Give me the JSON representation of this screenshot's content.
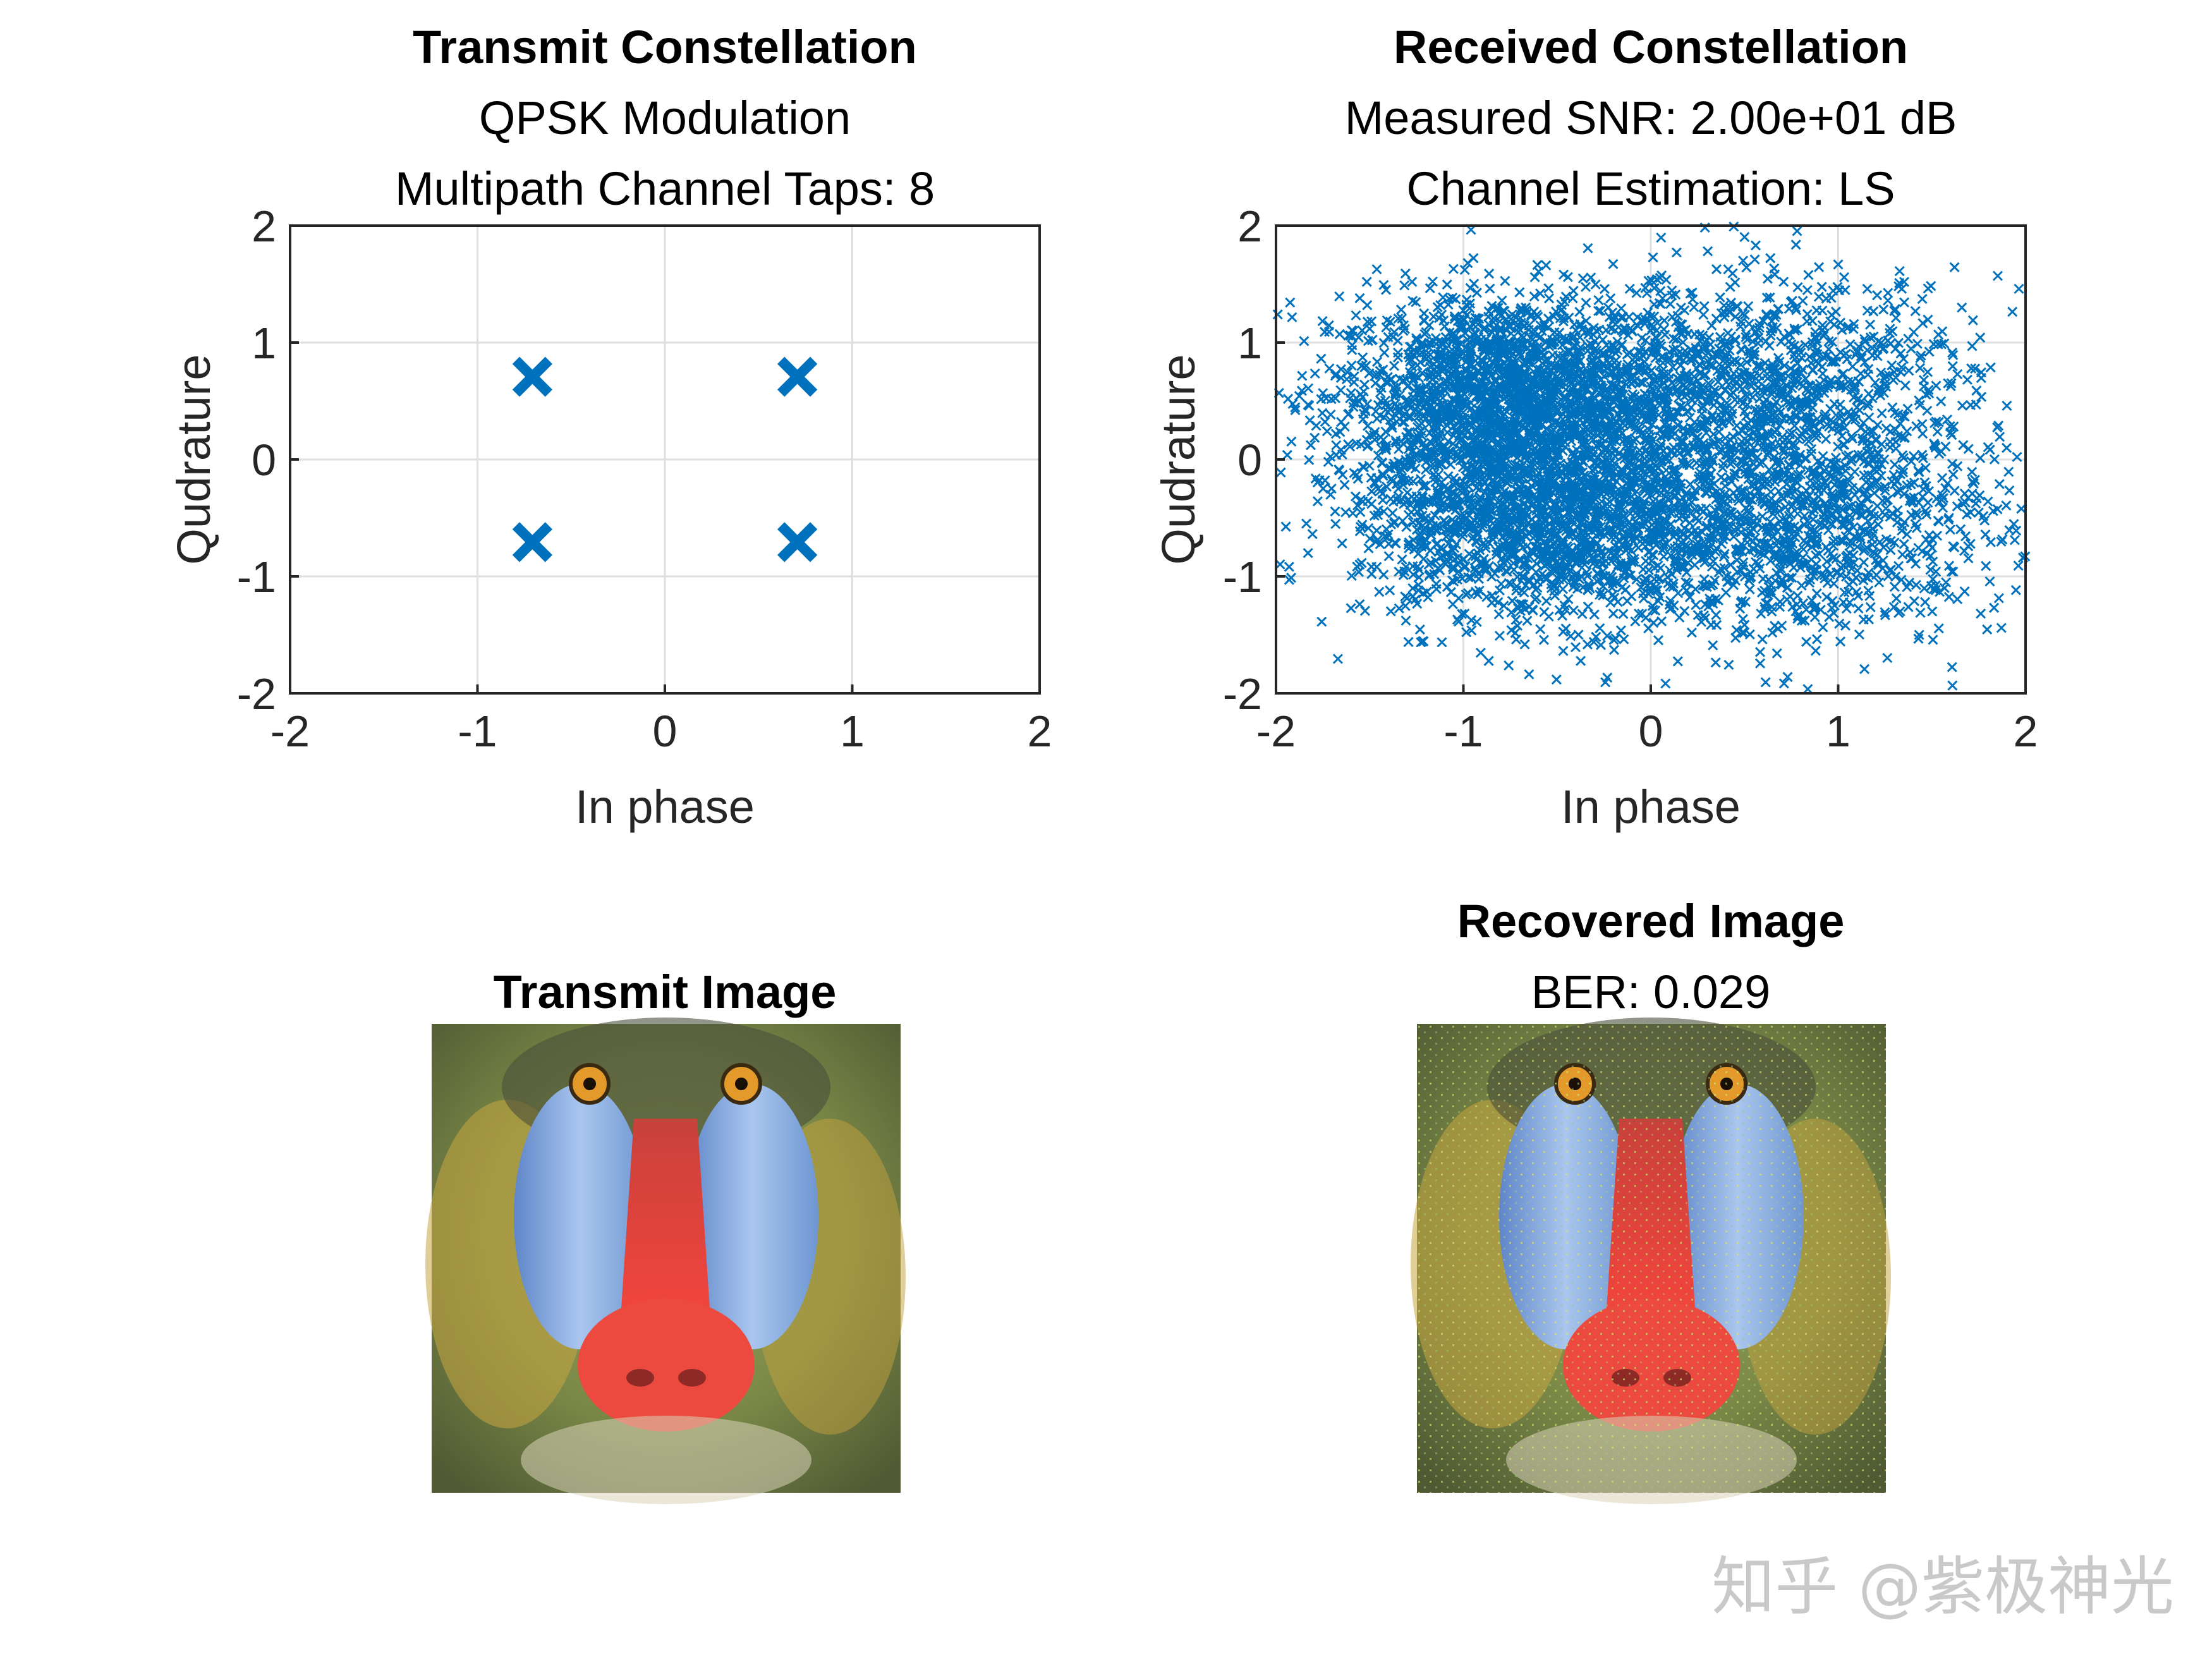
{
  "colors": {
    "marker": "#0072BD",
    "axis": "#262626",
    "grid": "#dfdfdf"
  },
  "chart_data": [
    {
      "type": "scatter",
      "title": "Transmit Constellation",
      "subtitles": [
        "QPSK Modulation",
        "Multipath Channel Taps: 8"
      ],
      "xlabel": "In phase",
      "ylabel": "Qudrature",
      "xlim": [
        -2,
        2
      ],
      "ylim": [
        -2,
        2
      ],
      "xticks": [
        "-2",
        "-1",
        "0",
        "1",
        "2"
      ],
      "yticks": [
        "-2",
        "-1",
        "0",
        "1",
        "2"
      ],
      "grid": true,
      "marker": "x",
      "points": [
        [
          -0.707,
          0.707
        ],
        [
          0.707,
          0.707
        ],
        [
          -0.707,
          -0.707
        ],
        [
          0.707,
          -0.707
        ]
      ]
    },
    {
      "type": "scatter",
      "title": "Received Constellation",
      "subtitles": [
        "Measured SNR: 2.00e+01 dB",
        "Channel Estimation: LS"
      ],
      "xlabel": "In phase",
      "ylabel": "Qudrature",
      "xlim": [
        -2,
        2
      ],
      "ylim": [
        -2,
        2
      ],
      "xticks": [
        "-2",
        "-1",
        "0",
        "1",
        "2"
      ],
      "yticks": [
        "-2",
        "-1",
        "0",
        "1",
        "2"
      ],
      "grid": true,
      "marker": "x",
      "clusters": [
        {
          "center": [
            -0.75,
            0.55
          ],
          "spread": 0.48,
          "weight": 0.34
        },
        {
          "center": [
            -0.55,
            -0.5
          ],
          "spread": 0.5,
          "weight": 0.3
        },
        {
          "center": [
            0.6,
            0.6
          ],
          "spread": 0.55,
          "weight": 0.18
        },
        {
          "center": [
            0.8,
            -0.55
          ],
          "spread": 0.55,
          "weight": 0.18
        }
      ],
      "point_count": 6000
    }
  ],
  "images": [
    {
      "title": "Transmit Image",
      "subtitle": "",
      "content": "mandrill-photo"
    },
    {
      "title": "Recovered Image",
      "subtitle": "BER: 0.029",
      "content": "mandrill-photo-noisy"
    }
  ],
  "watermark": "知乎 @紫极神光"
}
